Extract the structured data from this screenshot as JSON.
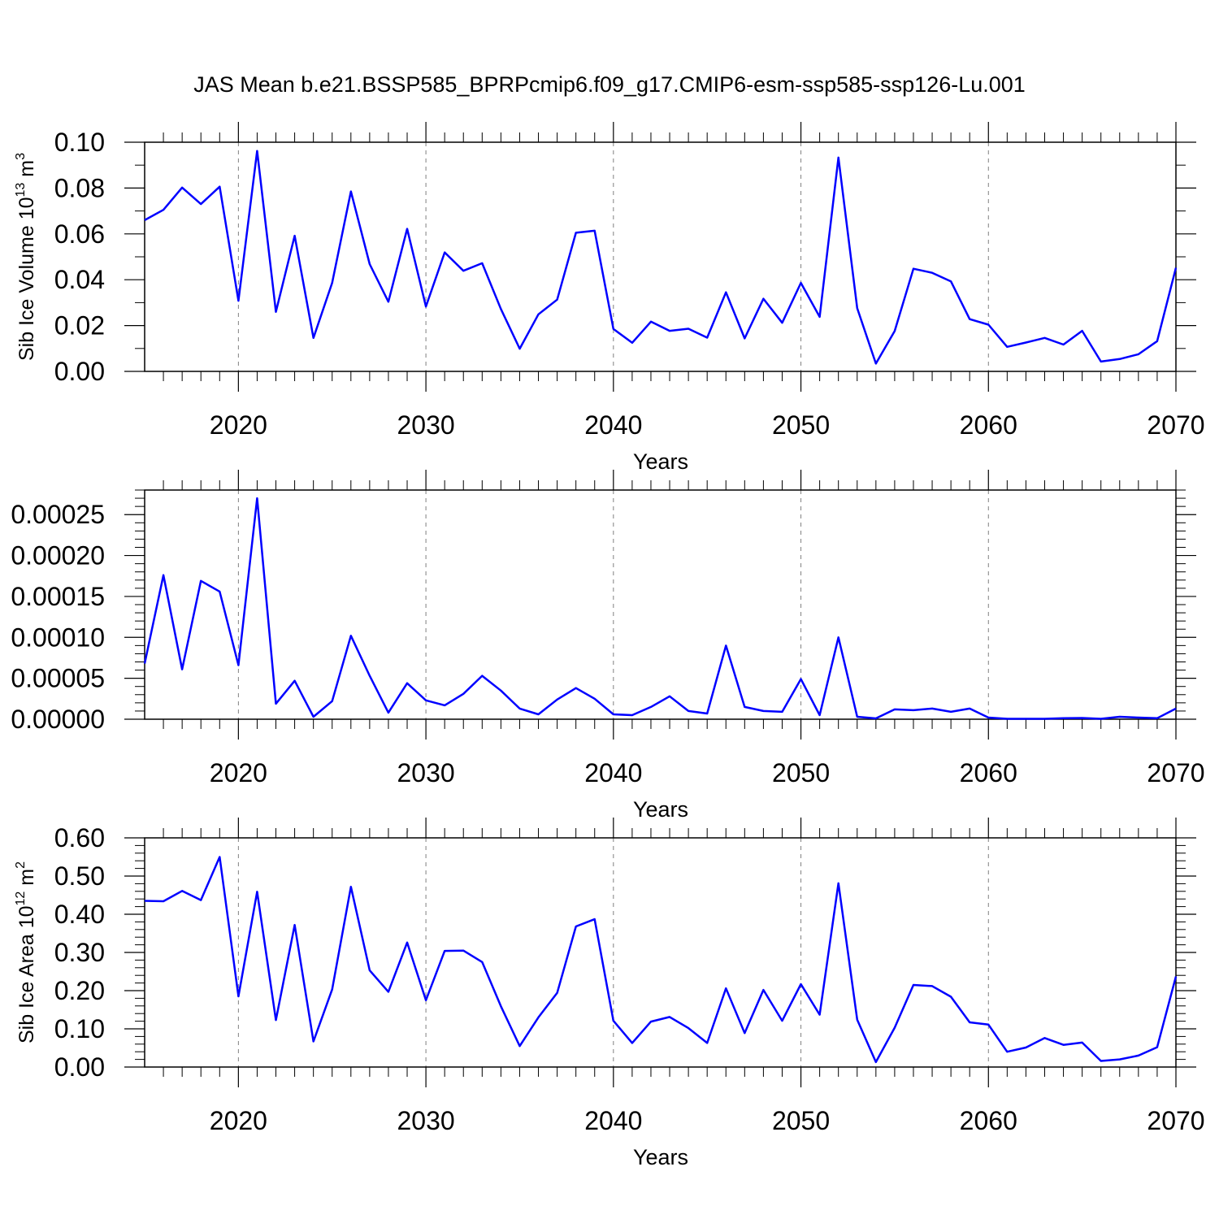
{
  "figure_title": "JAS Mean b.e21.BSSP585_BPRPcmip6.f09_g17.CMIP6-esm-ssp585-ssp126-Lu.001",
  "colors": {
    "series": "#0000ff",
    "axis": "#000000",
    "grid": "#808080"
  },
  "chart_data": [
    {
      "type": "line",
      "title": "JAS Mean b.e21.BSSP585_BPRPcmip6.f09_g17.CMIP6-esm-ssp585-ssp126-Lu.001",
      "xlabel": "Years",
      "ylabel": {
        "text": "Sib Ice Volume 10",
        "sup": "13",
        "unit": " m",
        "unit_sup": "3"
      },
      "xlim": [
        2015,
        2070
      ],
      "ylim": [
        0,
        0.1
      ],
      "xticks": [
        "2020",
        "2030",
        "2040",
        "2050",
        "2060",
        "2070"
      ],
      "yticks": [
        "0.00",
        "0.02",
        "0.04",
        "0.06",
        "0.08",
        "0.10"
      ],
      "x": [
        2015,
        2016,
        2017,
        2018,
        2019,
        2020,
        2021,
        2022,
        2023,
        2024,
        2025,
        2026,
        2027,
        2028,
        2029,
        2030,
        2031,
        2032,
        2033,
        2034,
        2035,
        2036,
        2037,
        2038,
        2039,
        2040,
        2041,
        2042,
        2043,
        2044,
        2045,
        2046,
        2047,
        2048,
        2049,
        2050,
        2051,
        2052,
        2053,
        2054,
        2055,
        2056,
        2057,
        2058,
        2059,
        2060,
        2061,
        2062,
        2063,
        2064,
        2065,
        2066,
        2067,
        2068,
        2069,
        2070
      ],
      "values": [
        0.066,
        0.0705,
        0.0802,
        0.073,
        0.0806,
        0.0308,
        0.0962,
        0.026,
        0.0592,
        0.0146,
        0.0386,
        0.0785,
        0.0468,
        0.0304,
        0.0622,
        0.0283,
        0.0519,
        0.0439,
        0.0472,
        0.0272,
        0.0099,
        0.0249,
        0.0313,
        0.0605,
        0.0614,
        0.0185,
        0.0125,
        0.0217,
        0.0177,
        0.0186,
        0.0147,
        0.0345,
        0.0144,
        0.0317,
        0.0212,
        0.0386,
        0.0238,
        0.0933,
        0.0276,
        0.0034,
        0.0176,
        0.0448,
        0.043,
        0.0393,
        0.0228,
        0.0204,
        0.0107,
        0.0126,
        0.0146,
        0.0117,
        0.0177,
        0.0043,
        0.0054,
        0.0075,
        0.0132,
        0.0452
      ]
    },
    {
      "type": "line",
      "xlabel": "Years",
      "ylabel": null,
      "xlim": [
        2015,
        2070
      ],
      "ylim": [
        0,
        0.00028
      ],
      "xticks": [
        "2020",
        "2030",
        "2040",
        "2050",
        "2060",
        "2070"
      ],
      "yticks": [
        "0.00000",
        "0.00005",
        "0.00010",
        "0.00015",
        "0.00020",
        "0.00025"
      ],
      "x": [
        2015,
        2016,
        2017,
        2018,
        2019,
        2020,
        2021,
        2022,
        2023,
        2024,
        2025,
        2026,
        2027,
        2028,
        2029,
        2030,
        2031,
        2032,
        2033,
        2034,
        2035,
        2036,
        2037,
        2038,
        2039,
        2040,
        2041,
        2042,
        2043,
        2044,
        2045,
        2046,
        2047,
        2048,
        2049,
        2050,
        2051,
        2052,
        2053,
        2054,
        2055,
        2056,
        2057,
        2058,
        2059,
        2060,
        2061,
        2062,
        2063,
        2064,
        2065,
        2066,
        2067,
        2068,
        2069,
        2070
      ],
      "values": [
        6.8e-05,
        0.000176,
        6.1e-05,
        0.000169,
        0.000156,
        6.6e-05,
        0.00027,
        1.9e-05,
        4.7e-05,
        3e-06,
        2.2e-05,
        0.000102,
        5.3e-05,
        8e-06,
        4.4e-05,
        2.3e-05,
        1.7e-05,
        3.1e-05,
        5.3e-05,
        3.5e-05,
        1.3e-05,
        6e-06,
        2.4e-05,
        3.8e-05,
        2.5e-05,
        6e-06,
        5e-06,
        1.5e-05,
        2.8e-05,
        1e-05,
        7e-06,
        9e-05,
        1.5e-05,
        1e-05,
        9e-06,
        4.9e-05,
        5e-06,
        0.0001,
        3e-06,
        1e-06,
        1.2e-05,
        1.1e-05,
        1.3e-05,
        9e-06,
        1.3e-05,
        2e-06,
        5e-07,
        5e-07,
        5e-07,
        1.2e-06,
        1.5e-06,
        5e-07,
        3e-06,
        2e-06,
        1.2e-06,
        1.3e-05
      ]
    },
    {
      "type": "line",
      "xlabel": "Years",
      "ylabel": {
        "text": "Sib Ice Area 10",
        "sup": "12",
        "unit": " m",
        "unit_sup": "2"
      },
      "xlim": [
        2015,
        2070
      ],
      "ylim": [
        0,
        0.6
      ],
      "xticks": [
        "2020",
        "2030",
        "2040",
        "2050",
        "2060",
        "2070"
      ],
      "yticks": [
        "0.00",
        "0.10",
        "0.20",
        "0.30",
        "0.40",
        "0.50",
        "0.60"
      ],
      "x": [
        2015,
        2016,
        2017,
        2018,
        2019,
        2020,
        2021,
        2022,
        2023,
        2024,
        2025,
        2026,
        2027,
        2028,
        2029,
        2030,
        2031,
        2032,
        2033,
        2034,
        2035,
        2036,
        2037,
        2038,
        2039,
        2040,
        2041,
        2042,
        2043,
        2044,
        2045,
        2046,
        2047,
        2048,
        2049,
        2050,
        2051,
        2052,
        2053,
        2054,
        2055,
        2056,
        2057,
        2058,
        2059,
        2060,
        2061,
        2062,
        2063,
        2064,
        2065,
        2066,
        2067,
        2068,
        2069,
        2070
      ],
      "values": [
        0.435,
        0.434,
        0.461,
        0.437,
        0.55,
        0.185,
        0.459,
        0.123,
        0.372,
        0.067,
        0.203,
        0.472,
        0.253,
        0.197,
        0.326,
        0.175,
        0.304,
        0.305,
        0.275,
        0.159,
        0.055,
        0.13,
        0.194,
        0.368,
        0.387,
        0.121,
        0.063,
        0.119,
        0.131,
        0.102,
        0.063,
        0.206,
        0.089,
        0.202,
        0.121,
        0.217,
        0.137,
        0.481,
        0.124,
        0.013,
        0.103,
        0.215,
        0.212,
        0.184,
        0.117,
        0.111,
        0.04,
        0.051,
        0.076,
        0.058,
        0.064,
        0.016,
        0.02,
        0.03,
        0.052,
        0.237
      ]
    }
  ]
}
